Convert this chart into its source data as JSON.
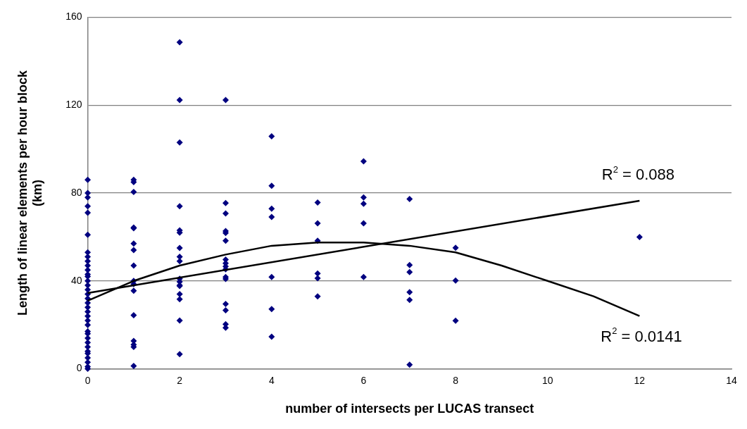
{
  "chart_data": {
    "type": "scatter",
    "xlabel": "number of intersects per LUCAS transect",
    "ylabel": "Length of linear elements per hour block (km)",
    "xlim": [
      0,
      14
    ],
    "xticks": [
      0,
      2,
      4,
      6,
      8,
      10,
      12,
      14
    ],
    "ylim": [
      0,
      160
    ],
    "yticks": [
      0,
      40,
      80,
      120,
      160
    ],
    "grid": "y",
    "legend": false,
    "marker": "diamond",
    "series": [
      {
        "type": "scatter",
        "color": "#000080",
        "x": [
          0,
          0,
          0,
          0,
          0,
          0,
          0,
          0,
          0,
          0,
          0,
          0,
          0,
          0,
          0,
          0,
          0,
          0,
          0,
          0,
          0,
          0,
          0,
          0,
          0,
          0,
          0,
          0,
          0,
          0,
          0,
          0,
          0,
          0,
          0,
          1,
          1,
          1,
          1,
          1,
          1,
          1,
          1,
          1,
          1,
          1,
          1,
          1,
          1,
          1,
          1,
          2,
          2,
          2,
          2,
          2,
          2,
          2,
          2,
          2,
          2,
          2,
          2,
          2,
          2,
          2,
          2,
          2,
          3,
          3,
          3,
          3,
          3,
          3,
          3,
          3,
          3,
          3,
          3,
          3,
          3,
          3,
          3,
          3,
          4,
          4,
          4,
          4,
          4,
          4,
          4,
          5,
          5,
          5,
          5,
          5,
          5,
          6,
          6,
          6,
          6,
          6,
          7,
          7,
          7,
          7,
          7,
          7,
          8,
          8,
          8,
          12
        ],
        "values": [
          86,
          80,
          78,
          74,
          71,
          61,
          53,
          51,
          49,
          47,
          45,
          43,
          42,
          40,
          38,
          36,
          34,
          32,
          30,
          28,
          26,
          24,
          22,
          20,
          17,
          16,
          14,
          12,
          10,
          8,
          7,
          5,
          3,
          1,
          0,
          86,
          85,
          80.5,
          64.3,
          57,
          54,
          47,
          38.6,
          35.5,
          24.4,
          12.7,
          11,
          10,
          1.3,
          64,
          40,
          148.6,
          122.3,
          103,
          74,
          63,
          62,
          55,
          51,
          49,
          41,
          39.6,
          38,
          37.7,
          34,
          31.7,
          22,
          6.7,
          122.3,
          75.4,
          70.7,
          62.7,
          61.8,
          58.3,
          49.7,
          48,
          46.6,
          45.3,
          41.8,
          40.9,
          29.5,
          26.6,
          20.3,
          18.7,
          105.8,
          83.3,
          72.9,
          69.1,
          41.8,
          27.2,
          14.6,
          75.7,
          66.2,
          58.3,
          43.4,
          41.2,
          33,
          94.4,
          78,
          75.1,
          66.2,
          41.8,
          77.3,
          47.2,
          44,
          34.9,
          31.4,
          1.9,
          55.1,
          40.2,
          21.9,
          60
        ]
      },
      {
        "type": "line",
        "color": "#000000",
        "marker": "none",
        "line_style": "solid",
        "x": [
          0,
          12
        ],
        "values": [
          34.5,
          76.5
        ]
      },
      {
        "type": "line",
        "color": "#000000",
        "marker": "none",
        "line_style": "solid",
        "x": [
          0,
          1,
          2,
          3,
          4,
          5,
          6,
          7,
          8,
          9,
          10,
          11,
          12
        ],
        "values": [
          31,
          40,
          47,
          52,
          56,
          57.5,
          57.5,
          56,
          53,
          47,
          40,
          33,
          24
        ]
      }
    ],
    "annotations": [
      "R$^{2}$ = 0.088",
      "R$^{2}$ = 0.0141"
    ]
  }
}
